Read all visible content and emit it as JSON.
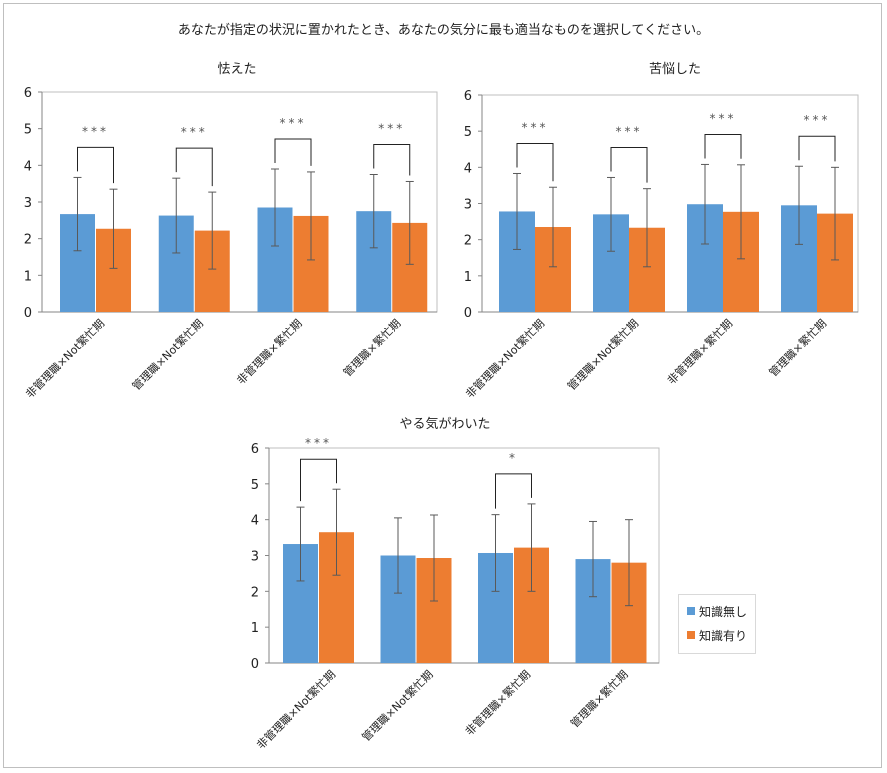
{
  "page_title": "あなたが指定の状況に置かれたとき、あなたの気分に最も適当なものを選択してください。",
  "colors": {
    "series_1": "#5B9BD5",
    "series_2": "#ED7D31",
    "axis": "#868686",
    "error_bar": "#595959"
  },
  "legend": {
    "items": [
      {
        "label": "知識無し",
        "color": "#5B9BD5"
      },
      {
        "label": "知識有り",
        "color": "#ED7D31"
      }
    ]
  },
  "chart_data": [
    {
      "type": "bar",
      "title": "怯えた",
      "categories": [
        "非管理職×Not繁忙期",
        "管理職×Not繁忙期",
        "非管理職×繁忙期",
        "管理職×繁忙期"
      ],
      "ylim": [
        0,
        6
      ],
      "yticks": [
        "0",
        "1",
        "2",
        "3",
        "4",
        "5",
        "6"
      ],
      "series": [
        {
          "name": "知識無し",
          "values": [
            2.67,
            2.63,
            2.85,
            2.75
          ],
          "errors": [
            1.0,
            1.02,
            1.05,
            1.0
          ]
        },
        {
          "name": "知識有り",
          "values": [
            2.27,
            2.22,
            2.62,
            2.43
          ],
          "errors": [
            1.08,
            1.05,
            1.2,
            1.13
          ]
        }
      ],
      "significance": [
        {
          "category": 0,
          "label": "***"
        },
        {
          "category": 1,
          "label": "***"
        },
        {
          "category": 2,
          "label": "***"
        },
        {
          "category": 3,
          "label": "***"
        }
      ]
    },
    {
      "type": "bar",
      "title": "苦悩した",
      "categories": [
        "非管理職×Not繁忙期",
        "管理職×Not繁忙期",
        "非管理職×繁忙期",
        "管理職×繁忙期"
      ],
      "ylim": [
        0,
        6
      ],
      "yticks": [
        "0",
        "1",
        "2",
        "3",
        "4",
        "5",
        "6"
      ],
      "series": [
        {
          "name": "知識無し",
          "values": [
            2.78,
            2.7,
            2.98,
            2.95
          ],
          "errors": [
            1.05,
            1.02,
            1.1,
            1.08
          ]
        },
        {
          "name": "知識有り",
          "values": [
            2.35,
            2.33,
            2.77,
            2.72
          ],
          "errors": [
            1.1,
            1.08,
            1.3,
            1.28
          ]
        }
      ],
      "significance": [
        {
          "category": 0,
          "label": "***"
        },
        {
          "category": 1,
          "label": "***"
        },
        {
          "category": 2,
          "label": "***"
        },
        {
          "category": 3,
          "label": "***"
        }
      ]
    },
    {
      "type": "bar",
      "title": "やる気がわいた",
      "categories": [
        "非管理職×Not繁忙期",
        "管理職×Not繁忙期",
        "非管理職×繁忙期",
        "管理職×繁忙期"
      ],
      "ylim": [
        0,
        6
      ],
      "yticks": [
        "0",
        "1",
        "2",
        "3",
        "4",
        "5",
        "6"
      ],
      "series": [
        {
          "name": "知識無し",
          "values": [
            3.32,
            3.0,
            3.07,
            2.9
          ],
          "errors": [
            1.03,
            1.05,
            1.07,
            1.05
          ]
        },
        {
          "name": "知識有り",
          "values": [
            3.65,
            2.93,
            3.22,
            2.8
          ],
          "errors": [
            1.2,
            1.2,
            1.22,
            1.2
          ]
        }
      ],
      "significance": [
        {
          "category": 0,
          "label": "***"
        },
        {
          "category": 2,
          "label": "*"
        }
      ]
    }
  ]
}
